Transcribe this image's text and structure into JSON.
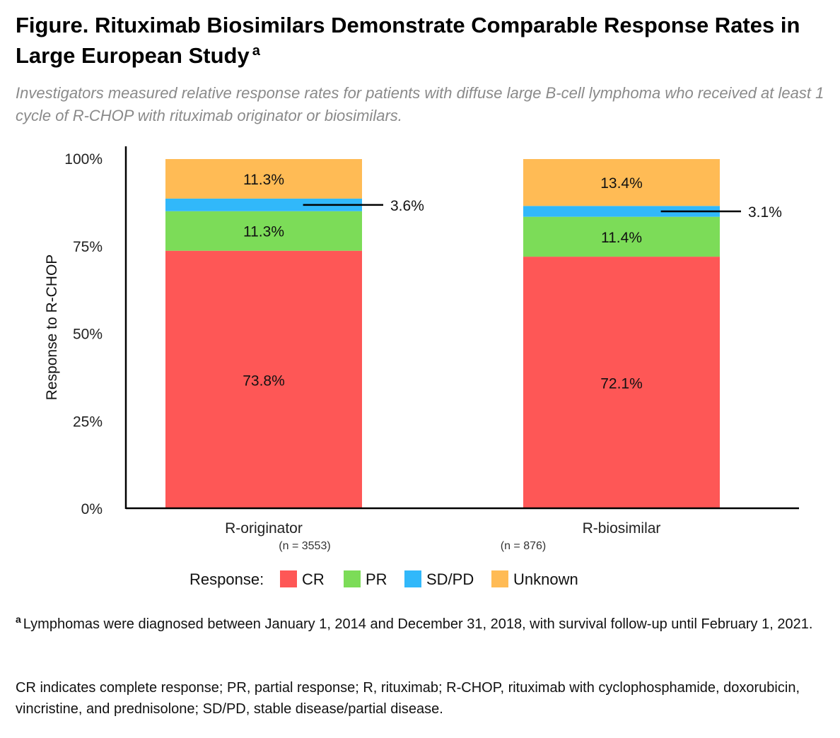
{
  "title": "Figure. Rituximab Biosimilars Demonstrate Comparable Response Rates in Large European Study",
  "title_superscript": "a",
  "subtitle": "Investigators measured relative response rates for patients with diffuse large B-cell lymphoma who received at least 1 cycle of R-CHOP with rituximab originator or biosimilars.",
  "chart_data": {
    "type": "bar",
    "stacked": true,
    "categories": [
      "R-originator",
      "R-biosimilar"
    ],
    "category_notes": [
      "(n = 3553)",
      "(n = 876)"
    ],
    "ylabel": "Response to R-CHOP",
    "ylim": [
      0,
      100
    ],
    "yticks": [
      0,
      25,
      50,
      75,
      100
    ],
    "ytick_labels": [
      "0%",
      "25%",
      "50%",
      "75%",
      "100%"
    ],
    "series": [
      {
        "name": "CR",
        "color": "#fe5756",
        "values": [
          73.8,
          72.1
        ],
        "labels": [
          "73.8%",
          "72.1%"
        ]
      },
      {
        "name": "PR",
        "color": "#7cdc58",
        "values": [
          11.3,
          11.4
        ],
        "labels": [
          "11.3%",
          "11.4%"
        ]
      },
      {
        "name": "SD/PD",
        "color": "#31b8fa",
        "values": [
          3.6,
          3.1
        ],
        "labels": [
          "3.6%",
          "3.1%"
        ]
      },
      {
        "name": "Unknown",
        "color": "#ffbb55",
        "values": [
          11.3,
          13.4
        ],
        "labels": [
          "11.3%",
          "13.4%"
        ]
      }
    ],
    "legend_title": "Response:",
    "legend_position": "bottom"
  },
  "footnote_a_marker": "a",
  "footnote_a": "Lymphomas were diagnosed between January 1, 2014 and December 31, 2018, with survival follow-up until February 1, 2021.",
  "footnote_abbrev": "CR indicates complete response; PR, partial response; R, rituximab; R-CHOP, rituximab with cyclophosphamide, doxorubicin, vincristine, and prednisolone; SD/PD, stable disease/partial disease."
}
